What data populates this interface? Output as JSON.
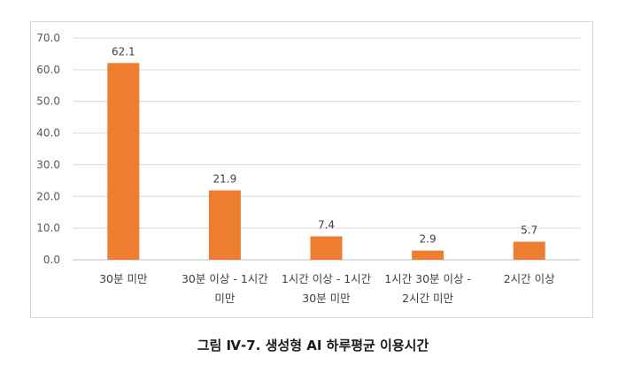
{
  "chart_data": {
    "type": "bar",
    "categories": [
      "30분 미만",
      "30분 이상 - 1시간 미만",
      "1시간 이상 - 1시간 30분 미만",
      "1시간 30분 이상 - 2시간 미만",
      "2시간 이상"
    ],
    "category_lines": [
      [
        "30분 미만"
      ],
      [
        "30분 이상 - 1시간",
        "미만"
      ],
      [
        "1시간 이상 - 1시간",
        "30분 미만"
      ],
      [
        "1시간 30분 이상 -",
        "2시간 미만"
      ],
      [
        "2시간 이상"
      ]
    ],
    "values": [
      62.1,
      21.9,
      7.4,
      2.9,
      5.7
    ],
    "value_labels": [
      "62.1",
      "21.9",
      "7.4",
      "2.9",
      "5.7"
    ],
    "y_ticks": [
      "0.0",
      "10.0",
      "20.0",
      "30.0",
      "40.0",
      "50.0",
      "60.0",
      "70.0"
    ],
    "ylim": [
      0,
      70
    ],
    "grid": true,
    "bar_color": "#ED7D31",
    "title": "",
    "xlabel": "",
    "ylabel": ""
  },
  "caption": "그림 Ⅳ-7. 생성형 AI 하루평균 이용시간"
}
